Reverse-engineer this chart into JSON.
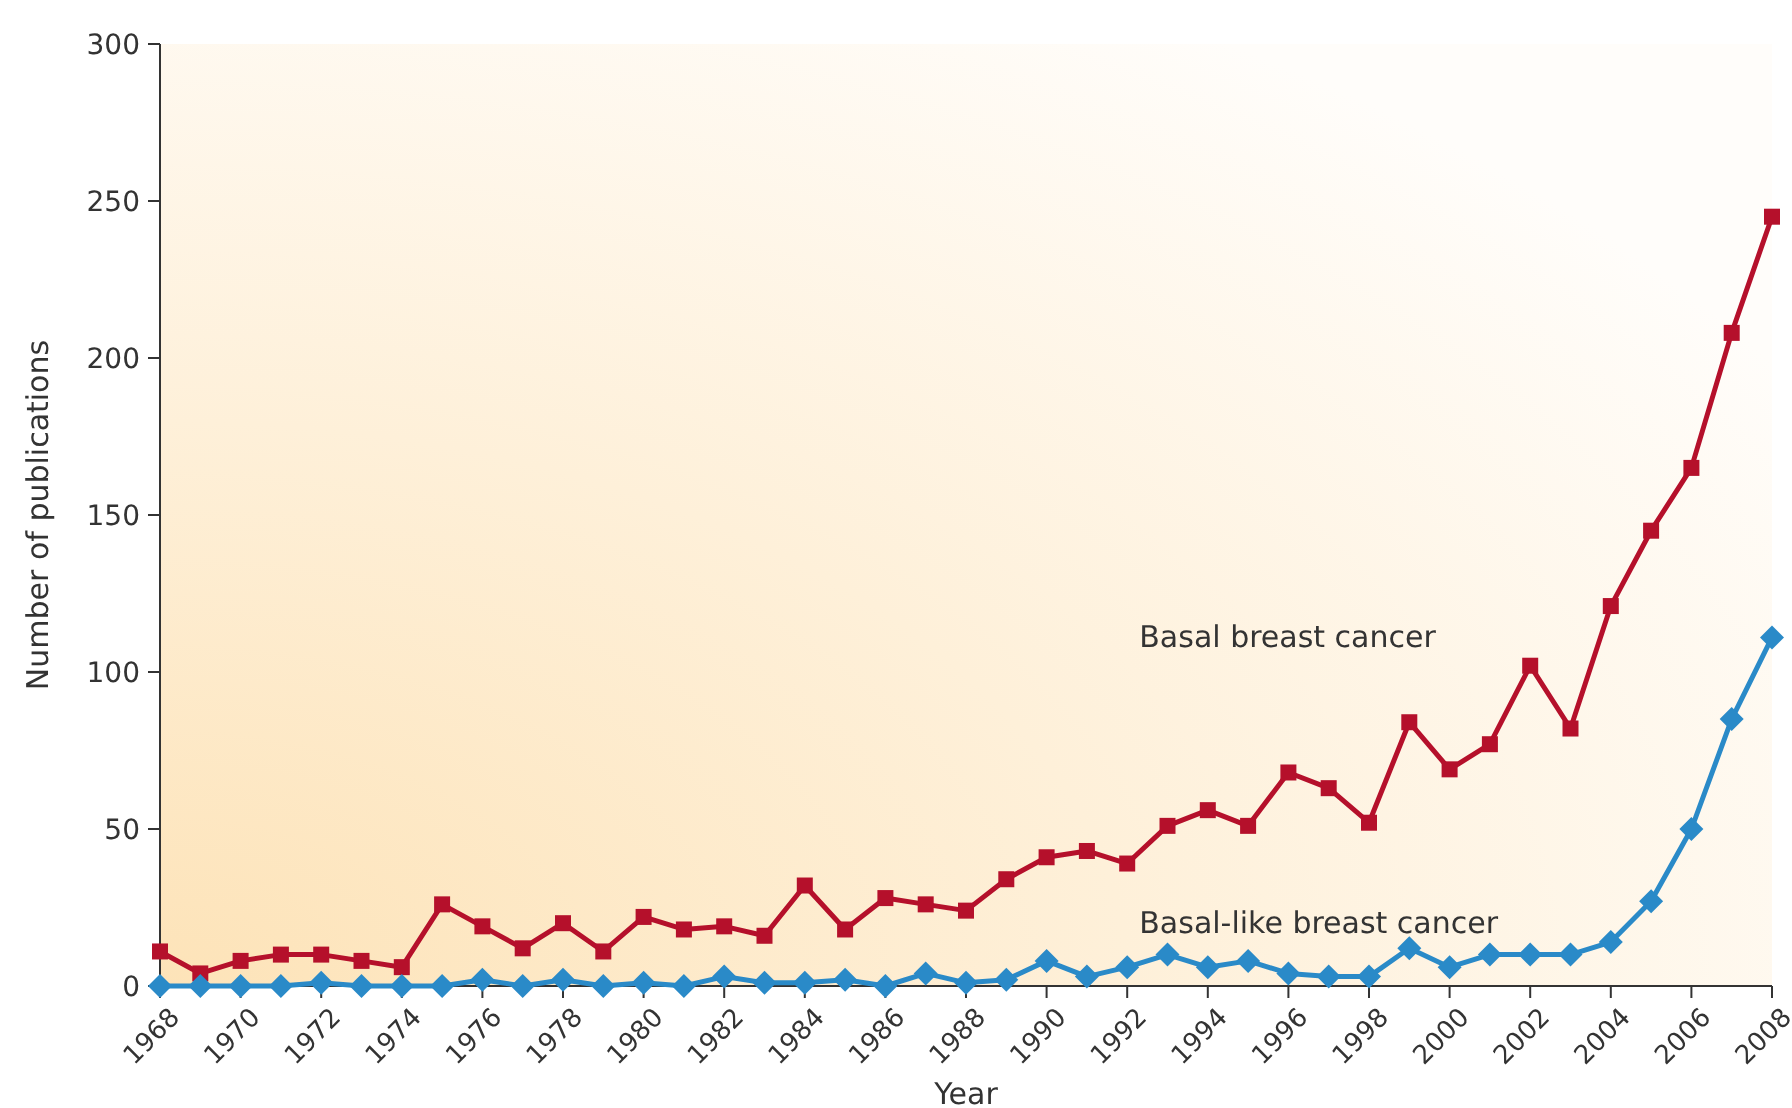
{
  "chart_data": {
    "type": "line",
    "xlabel": "Year",
    "ylabel": "Number of publications",
    "x": [
      1968,
      1969,
      1970,
      1971,
      1972,
      1973,
      1974,
      1975,
      1976,
      1977,
      1978,
      1979,
      1980,
      1981,
      1982,
      1983,
      1984,
      1985,
      1986,
      1987,
      1988,
      1989,
      1990,
      1991,
      1992,
      1993,
      1994,
      1995,
      1996,
      1997,
      1998,
      1999,
      2000,
      2001,
      2002,
      2003,
      2004,
      2005,
      2006,
      2007,
      2008
    ],
    "series": [
      {
        "name": "Basal breast cancer",
        "color": "#b5102b",
        "marker": "square",
        "values": [
          11,
          4,
          8,
          10,
          10,
          8,
          6,
          26,
          19,
          12,
          20,
          11,
          22,
          18,
          19,
          16,
          32,
          18,
          28,
          26,
          24,
          34,
          41,
          43,
          39,
          51,
          56,
          51,
          68,
          63,
          52,
          84,
          69,
          77,
          102,
          82,
          121,
          145,
          165,
          208,
          245
        ]
      },
      {
        "name": "Basal-like breast cancer",
        "color": "#2a8ac8",
        "marker": "diamond",
        "values": [
          0,
          0,
          0,
          0,
          1,
          0,
          0,
          0,
          2,
          0,
          2,
          0,
          1,
          0,
          3,
          1,
          1,
          2,
          0,
          4,
          1,
          2,
          8,
          3,
          6,
          10,
          6,
          8,
          4,
          3,
          3,
          12,
          6,
          10,
          10,
          10,
          14,
          27,
          50,
          85,
          111
        ]
      }
    ],
    "xlim": [
      1968,
      2008
    ],
    "xticks": [
      1968,
      1970,
      1972,
      1974,
      1976,
      1978,
      1980,
      1982,
      1984,
      1986,
      1988,
      1990,
      1992,
      1994,
      1996,
      1998,
      2000,
      2002,
      2004,
      2006,
      2008
    ],
    "ylim": [
      0,
      300
    ],
    "yticks": [
      0,
      50,
      100,
      150,
      200,
      250,
      300
    ],
    "grid": false,
    "line_style": "solid"
  }
}
